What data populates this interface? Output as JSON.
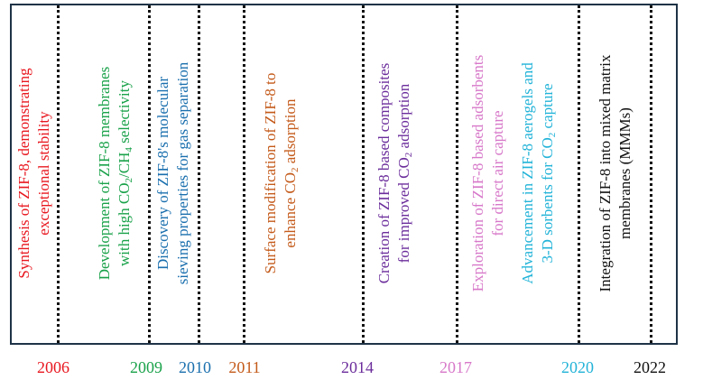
{
  "timeline": {
    "entries": [
      {
        "year": "2006",
        "color": "#e8171f",
        "text": "Synthesis of ZIF-8, demonstrating exceptional stability"
      },
      {
        "year": "2009",
        "color": "#1aa24a",
        "text": "Development of ZIF-8 membranes with high CO₂/CH₄ selectivity"
      },
      {
        "year": "2010",
        "color": "#1a6fae",
        "text": "Discovery of ZIF-8's molecular sieving properties for gas separation"
      },
      {
        "year": "2011",
        "color": "#c45a1a",
        "text": "Surface modification of ZIF-8 to enhance CO₂ adsorption"
      },
      {
        "year": "2014",
        "color": "#6b2d9b",
        "text": "Creation of ZIF-8 based composites for improved CO₂ adsorption"
      },
      {
        "year": "2017",
        "color": "#d778c9",
        "text": "Exploration of ZIF-8 based adsorbents for direct air capture"
      },
      {
        "year": "2020",
        "color": "#22b3d8",
        "text": "Advancement in ZIF-8 aerogels and 3-D sorbents for CO₂ capture"
      },
      {
        "year": "2022",
        "color": "#111111",
        "text": "Integration of ZIF-8 into mixed matrix membranes (MMMs)"
      }
    ]
  }
}
